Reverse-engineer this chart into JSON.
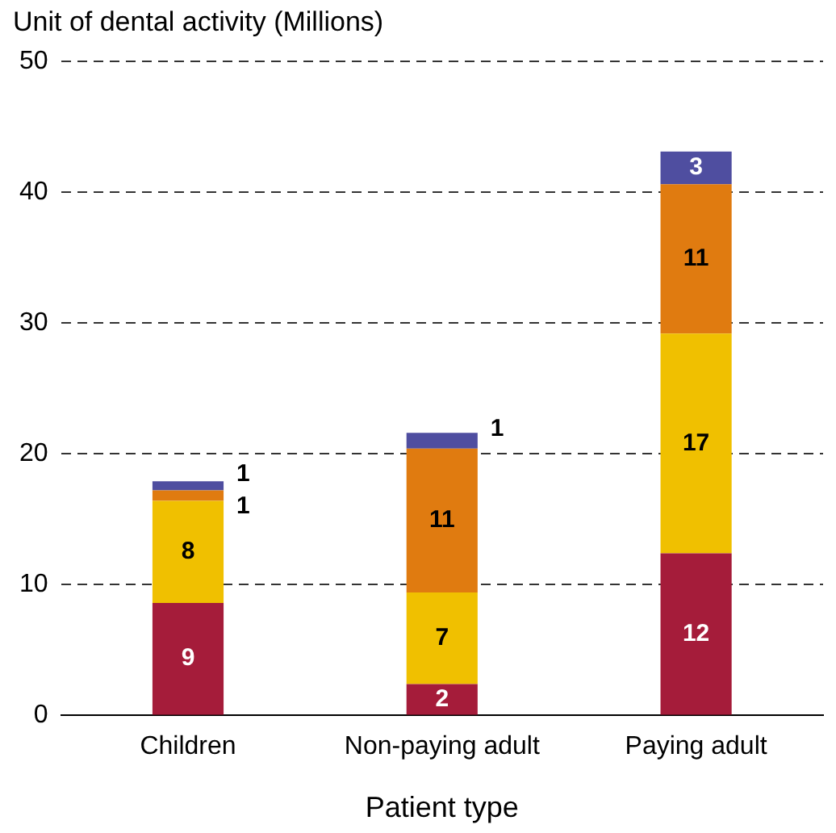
{
  "chart_data": {
    "type": "bar",
    "stacked": true,
    "ylabel": "Unit of dental activity (Millions)",
    "xlabel": "Patient type",
    "categories": [
      "Children",
      "Non-paying adult",
      "Paying adult"
    ],
    "series": [
      {
        "color": "#a51c3a",
        "values": [
          8.6,
          2.4,
          12.4
        ],
        "value_labels": [
          "9",
          "2",
          "12"
        ]
      },
      {
        "color": "#f0c000",
        "values": [
          7.8,
          7.0,
          16.8
        ],
        "value_labels": [
          "8",
          "7",
          "17"
        ]
      },
      {
        "color": "#e07b10",
        "values": [
          0.8,
          11.0,
          11.4
        ],
        "value_labels": [
          "1",
          "11",
          "11"
        ]
      },
      {
        "color": "#4f4ea0",
        "values": [
          0.7,
          1.2,
          2.5
        ],
        "value_labels": [
          "1",
          "1",
          "3"
        ]
      }
    ],
    "ylim": [
      0,
      50
    ],
    "yticks": [
      0,
      10,
      20,
      30,
      40,
      50
    ],
    "grid": "y",
    "legend": false
  }
}
